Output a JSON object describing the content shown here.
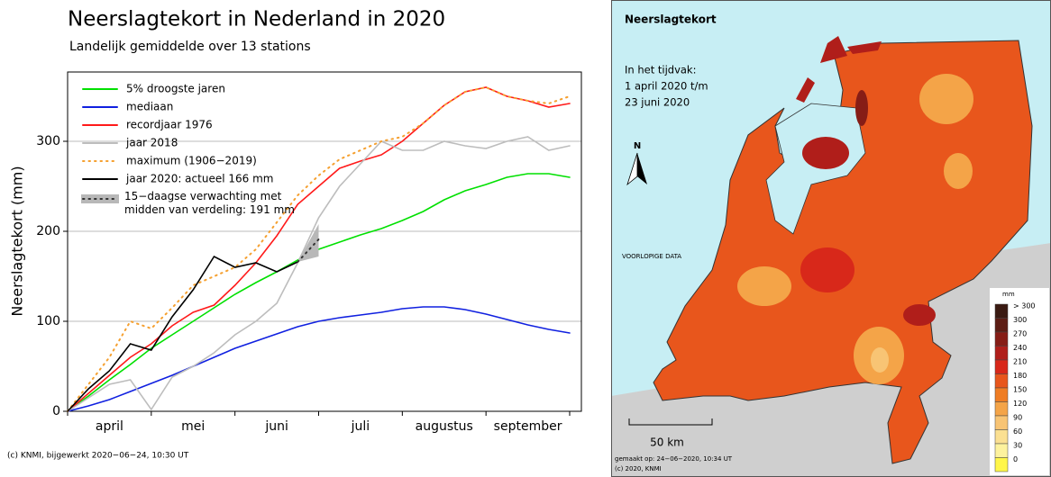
{
  "chart_data": {
    "type": "line",
    "title": "Neerslagtekort in Nederland in 2020",
    "subtitle": "Landelijk gemiddelde over 13 stations",
    "ylabel": "Neerslagtekort (mm)",
    "footer": "(c) KNMI, bijgewerkt 2020−06−24, 10:30 UT",
    "categories": [
      null,
      null,
      "april",
      null,
      null,
      null,
      "mei",
      null,
      null,
      null,
      "juni",
      null,
      null,
      null,
      "juli",
      null,
      null,
      null,
      "augustus",
      null,
      null,
      null,
      "september",
      null,
      null
    ],
    "ylim": [
      0,
      377
    ],
    "yticks": [
      0,
      100,
      200,
      300
    ],
    "grid": true,
    "series": [
      {
        "name": "5% droogste jaren",
        "color": "#00e000",
        "style": "solid",
        "values": [
          0,
          17,
          35,
          52,
          70,
          85,
          100,
          115,
          130,
          143,
          155,
          168,
          180,
          188,
          196,
          203,
          212,
          222,
          235,
          245,
          252,
          260,
          264,
          264,
          260
        ]
      },
      {
        "name": "mediaan",
        "color": "#1020e0",
        "style": "solid",
        "values": [
          0,
          6,
          13,
          22,
          31,
          40,
          50,
          60,
          70,
          78,
          86,
          94,
          100,
          104,
          107,
          110,
          114,
          116,
          116,
          113,
          108,
          102,
          96,
          91,
          87
        ]
      },
      {
        "name": "recordjaar 1976",
        "color": "#ff1a1a",
        "style": "solid",
        "values": [
          0,
          20,
          40,
          60,
          75,
          95,
          110,
          118,
          140,
          165,
          195,
          230,
          250,
          270,
          278,
          285,
          300,
          320,
          340,
          355,
          360,
          350,
          345,
          338,
          342
        ]
      },
      {
        "name": "jaar 2018",
        "color": "#bdbdbd",
        "style": "solid",
        "values": [
          0,
          15,
          30,
          35,
          2,
          38,
          50,
          65,
          85,
          100,
          120,
          165,
          215,
          250,
          275,
          300,
          290,
          290,
          300,
          295,
          292,
          300,
          305,
          290,
          295
        ]
      },
      {
        "name": "maximum (1906−2019)",
        "color": "#f5a030",
        "style": "dotted",
        "values": [
          0,
          30,
          60,
          100,
          92,
          115,
          140,
          150,
          160,
          180,
          210,
          240,
          262,
          280,
          290,
          300,
          305,
          320,
          340,
          355,
          360,
          350,
          345,
          342,
          350
        ]
      },
      {
        "name": "jaar 2020: actueel 166 mm",
        "color": "#000000",
        "style": "solid",
        "values": [
          0,
          25,
          45,
          75,
          68,
          105,
          135,
          172,
          160,
          165,
          155,
          166,
          null,
          null,
          null,
          null,
          null,
          null,
          null,
          null,
          null,
          null,
          null,
          null,
          null
        ]
      },
      {
        "name": "15−daagse verwachting met midden van verdeling: 191 mm",
        "color": "#333333",
        "style": "dotted",
        "band_color": "#b8b8b8",
        "values": [
          null,
          null,
          null,
          null,
          null,
          null,
          null,
          null,
          null,
          null,
          null,
          166,
          191,
          null,
          null,
          null,
          null,
          null,
          null,
          null,
          null,
          null,
          null,
          null,
          null
        ],
        "low": [
          null,
          null,
          null,
          null,
          null,
          null,
          null,
          null,
          null,
          null,
          null,
          166,
          172,
          null,
          null,
          null,
          null,
          null,
          null,
          null,
          null,
          null,
          null,
          null,
          null
        ],
        "high": [
          null,
          null,
          null,
          null,
          null,
          null,
          null,
          null,
          null,
          null,
          null,
          166,
          208,
          null,
          null,
          null,
          null,
          null,
          null,
          null,
          null,
          null,
          null,
          null,
          null
        ]
      }
    ]
  },
  "map": {
    "title": "Neerslagtekort",
    "period": [
      "In het tijdvak:",
      "1 april 2020 t/m",
      "23 juni 2020"
    ],
    "north": "N",
    "note": "VOORLOPIGE DATA",
    "scalebar": "50 km",
    "made": "gemaakt op: 24−06−2020, 10:34 UT",
    "copyright": "(c) 2020, KNMI",
    "unit": "mm",
    "scale": [
      {
        "label": "> 300",
        "color": "#3a1a12"
      },
      {
        "label": 300,
        "color": "#5c1d14"
      },
      {
        "label": 270,
        "color": "#861d16"
      },
      {
        "label": 240,
        "color": "#b01e1a"
      },
      {
        "label": 210,
        "color": "#d8281a"
      },
      {
        "label": 180,
        "color": "#e8561c"
      },
      {
        "label": 150,
        "color": "#ef7d24"
      },
      {
        "label": 120,
        "color": "#f4a448"
      },
      {
        "label": 90,
        "color": "#f8c474"
      },
      {
        "label": 60,
        "color": "#fbe092"
      },
      {
        "label": 30,
        "color": "#fdf29e"
      },
      {
        "label": 0,
        "color": "#fff64a"
      }
    ]
  }
}
